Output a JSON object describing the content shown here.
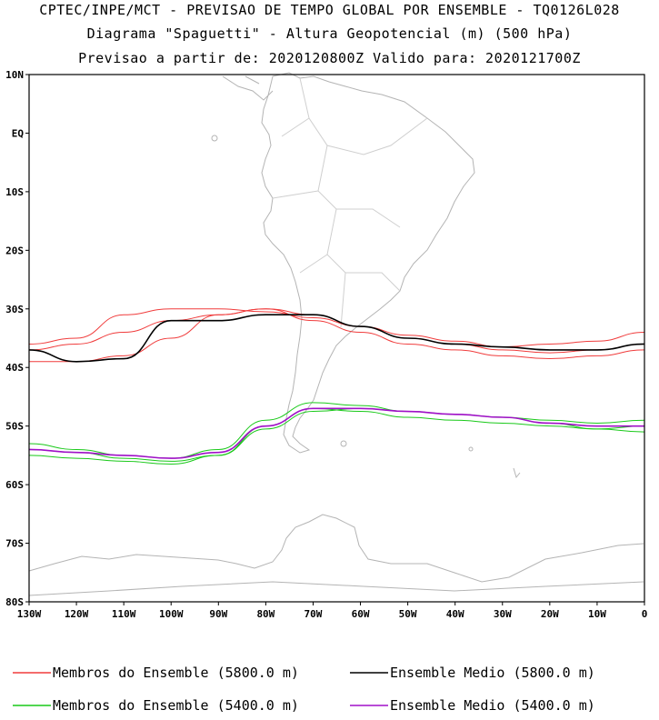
{
  "title": {
    "line1": "CPTEC/INPE/MCT - PREVISAO DE TEMPO GLOBAL POR ENSEMBLE - TQ0126L028",
    "line2": "Diagrama \"Spaguetti\" - Altura Geopotencial (m) (500 hPa)",
    "line3": "Previsao a partir de: 2020120800Z  Valido para: 2020121700Z"
  },
  "map": {
    "lon_range": [
      -130,
      0
    ],
    "lat_range": [
      -80,
      10
    ],
    "lat_ticks": [
      "10N",
      "EQ",
      "10S",
      "20S",
      "30S",
      "40S",
      "50S",
      "60S",
      "70S",
      "80S"
    ],
    "lon_ticks": [
      "130W",
      "120W",
      "110W",
      "100W",
      "90W",
      "80W",
      "70W",
      "60W",
      "50W",
      "40W",
      "30W",
      "20W",
      "10W",
      "0"
    ],
    "coastline_color": "#b4b4b4"
  },
  "chart_data": {
    "type": "line",
    "x": [
      -130,
      -120,
      -110,
      -100,
      -90,
      -80,
      -70,
      -60,
      -50,
      -40,
      -30,
      -20,
      -10,
      0
    ],
    "series": [
      {
        "name": "Membros do Ensemble (5800.0 m)",
        "color": "#f03c3c",
        "values": [
          -36,
          -35,
          -31,
          -30,
          -30,
          -30.5,
          -31.5,
          -33,
          -34.5,
          -35.5,
          -36.5,
          -36,
          -35.5,
          -34
        ]
      },
      {
        "name": "Membros do Ensemble (5800.0 m)",
        "color": "#f03c3c",
        "values": [
          -37,
          -36,
          -34,
          -32,
          -31,
          -30,
          -32,
          -34,
          -36,
          -37,
          -38,
          -38.5,
          -38,
          -37
        ]
      },
      {
        "name": "Membros do Ensemble (5800.0 m)",
        "color": "#f03c3c",
        "values": [
          -39,
          -39,
          -38,
          -35,
          -31,
          -30,
          -31,
          -33,
          -35,
          -36,
          -37,
          -37.5,
          -37,
          -36
        ]
      },
      {
        "name": "Ensemble Medio (5800.0 m)",
        "color": "#000000",
        "values": [
          -37,
          -39,
          -38.5,
          -32,
          -32,
          -31,
          -31,
          -33,
          -35,
          -36,
          -36.5,
          -37,
          -37,
          -36
        ]
      },
      {
        "name": "Membros do Ensemble (5400.0 m)",
        "color": "#19c919",
        "values": [
          -53,
          -54,
          -55,
          -55.5,
          -54,
          -49,
          -46,
          -46.5,
          -47.5,
          -48,
          -48.5,
          -49,
          -49.5,
          -49
        ]
      },
      {
        "name": "Membros do Ensemble (5400.0 m)",
        "color": "#19c919",
        "values": [
          -55,
          -55.5,
          -56,
          -56.5,
          -55,
          -50,
          -47,
          -47.5,
          -48.5,
          -49,
          -49.5,
          -50,
          -50.5,
          -50
        ]
      },
      {
        "name": "Membros do Ensemble (5400.0 m)",
        "color": "#19c919",
        "values": [
          -54,
          -54.5,
          -55.5,
          -56,
          -55,
          -50.5,
          -47.5,
          -47,
          -47.5,
          -48,
          -48.5,
          -49.5,
          -50.5,
          -51
        ]
      },
      {
        "name": "Ensemble Medio (5400.0 m)",
        "color": "#a010c8",
        "values": [
          -54,
          -54.5,
          -55,
          -55.5,
          -54.5,
          -50,
          -47,
          -47,
          -47.5,
          -48,
          -48.5,
          -49.5,
          -50,
          -50
        ]
      }
    ]
  },
  "legend": [
    {
      "label": "Membros do Ensemble (5800.0 m)",
      "color": "#f03c3c"
    },
    {
      "label": "Ensemble Medio (5800.0 m)",
      "color": "#000000"
    },
    {
      "label": "Membros do Ensemble (5400.0 m)",
      "color": "#19c919"
    },
    {
      "label": "Ensemble Medio (5400.0 m)",
      "color": "#a010c8"
    }
  ]
}
